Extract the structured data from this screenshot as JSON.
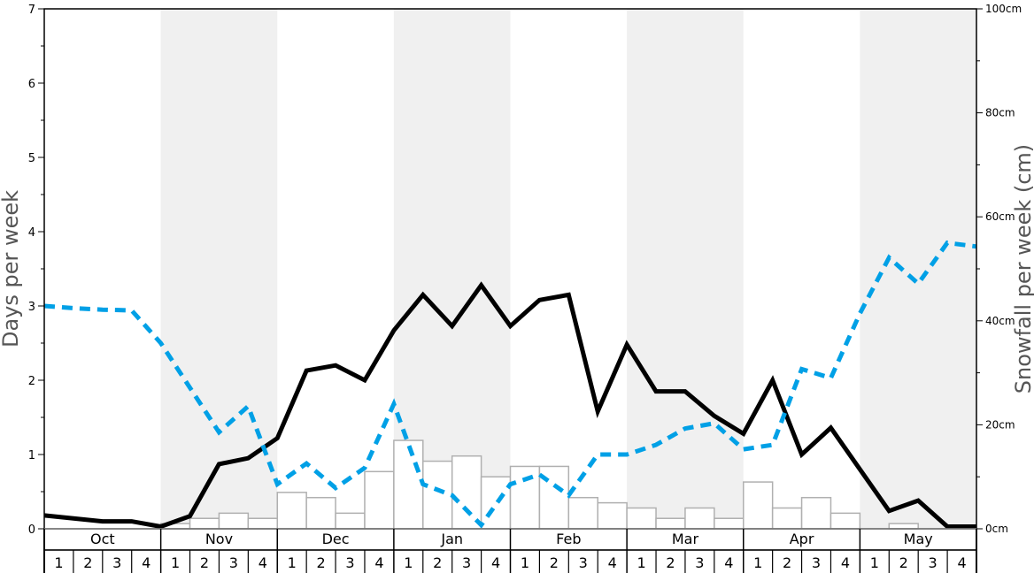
{
  "chart_data": {
    "type": "bar+line",
    "ylabel_left": "Days per week",
    "ylabel_right": "Snowfall per week (cm)",
    "ylim_left": [
      0,
      7
    ],
    "ylim_right": [
      0,
      100
    ],
    "left_ticks": [
      "0",
      "1",
      "2",
      "3",
      "4",
      "5",
      "6",
      "7"
    ],
    "right_ticks": [
      "0cm",
      "20cm",
      "40cm",
      "60cm",
      "80cm",
      "100cm"
    ],
    "months": [
      "Oct",
      "Nov",
      "Dec",
      "Jan",
      "Feb",
      "Mar",
      "Apr",
      "May"
    ],
    "weeks": [
      "1",
      "2",
      "3",
      "4"
    ],
    "shaded_months": [
      "Nov",
      "Jan",
      "Mar",
      "May"
    ],
    "snowfall_cm": [
      0,
      0,
      0,
      0,
      1,
      2,
      3,
      2,
      7,
      6,
      3,
      11,
      17,
      13,
      14,
      10,
      12,
      12,
      6,
      5,
      4,
      2,
      4,
      2,
      9,
      4,
      6,
      3,
      0,
      1,
      0,
      0
    ],
    "series": [
      {
        "style": "solid",
        "color": "#000000",
        "axis": "left",
        "values": [
          0.18,
          0.14,
          0.1,
          0.1,
          0.03,
          0.17,
          0.87,
          0.95,
          1.22,
          2.13,
          2.2,
          2.0,
          2.67,
          3.15,
          2.73,
          3.28,
          2.73,
          3.08,
          3.15,
          1.58,
          2.48,
          1.85,
          1.85,
          1.52,
          1.28,
          2.0,
          1.0,
          1.36,
          0.8,
          0.24,
          0.38,
          0.03,
          0.03
        ]
      },
      {
        "style": "dashed",
        "color": "#00a0e6",
        "axis": "left",
        "values": [
          3.0,
          2.97,
          2.95,
          2.94,
          2.5,
          1.9,
          1.3,
          1.65,
          0.6,
          0.88,
          0.55,
          0.82,
          1.68,
          0.6,
          0.45,
          0.05,
          0.6,
          0.73,
          0.45,
          1.0,
          1.0,
          1.13,
          1.35,
          1.42,
          1.07,
          1.13,
          2.15,
          2.03,
          2.9,
          3.65,
          3.3,
          3.85,
          3.8
        ]
      }
    ],
    "colors": {
      "shade": "#f0f0f0",
      "bar_fill": "#ffffff",
      "bar_stroke": "#b0b0b0"
    }
  }
}
